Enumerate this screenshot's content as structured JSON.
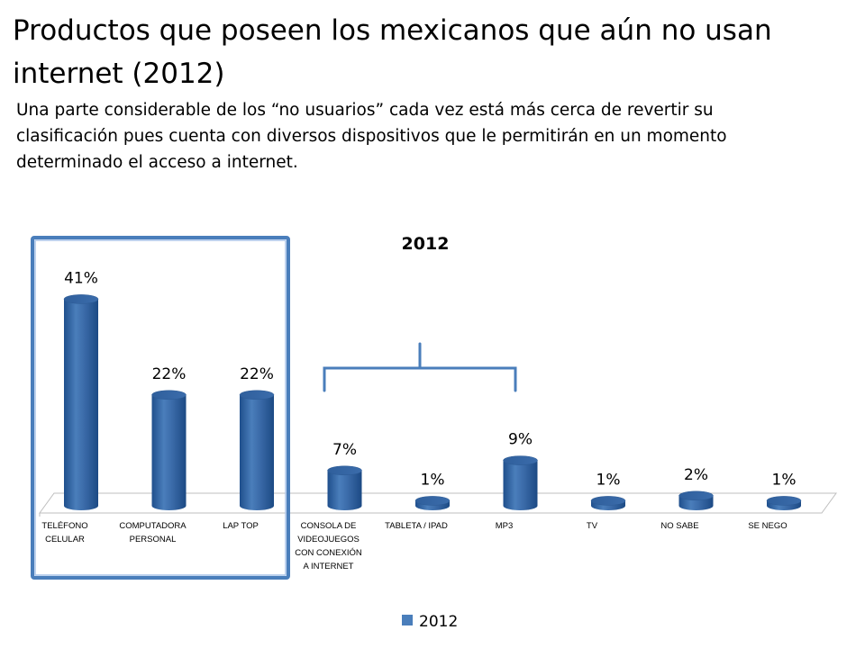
{
  "slide": {
    "title": "Productos que poseen los mexicanos que aún no usan internet (2012)",
    "subtitle": "Una parte considerable de los “no usuarios” cada vez está más cerca de revertir su clasificación pues cuenta con diversos dispositivos que le permitirán en un momento determinado el acceso a internet."
  },
  "colors": {
    "bar": "#4a7ebb",
    "highlight_box": "#4a7ebb",
    "bracket": "#4a7ebb"
  },
  "chart_data": {
    "type": "bar",
    "title": "2012",
    "categories": [
      "TELÉFONO CELULAR",
      "COMPUTADORA PERSONAL",
      "LAP TOP",
      "CONSOLA DE VIDEOJUEGOS CON CONEXIÓN A INTERNET",
      "TABLETA / IPAD",
      "MP3",
      "TV",
      "NO SABE",
      "SE NEGO"
    ],
    "category_lines": [
      [
        "TELÉFONO",
        "CELULAR"
      ],
      [
        "COMPUTADORA",
        "PERSONAL"
      ],
      [
        "LAP TOP"
      ],
      [
        "CONSOLA DE",
        "VIDEOJUEGOS",
        "CON CONEXIÓN",
        "A INTERNET"
      ],
      [
        "TABLETA / IPAD"
      ],
      [
        "MP3"
      ],
      [
        "TV"
      ],
      [
        "NO SABE"
      ],
      [
        "SE NEGO"
      ]
    ],
    "series": [
      {
        "name": "2012",
        "values": [
          41,
          22,
          22,
          7,
          1,
          9,
          1,
          2,
          1
        ],
        "labels": [
          "41%",
          "22%",
          "22%",
          "7%",
          "1%",
          "9%",
          "1%",
          "2%",
          "1%"
        ]
      }
    ],
    "ylim": [
      0,
      45
    ],
    "grid": false,
    "legend": "bottom",
    "style": "3d-cylinder",
    "annotations": [
      "highlight box around first three categories",
      "bracket over CONSOLA DE VIDEOJUEGOS, TABLETA / IPAD and MP3"
    ]
  }
}
